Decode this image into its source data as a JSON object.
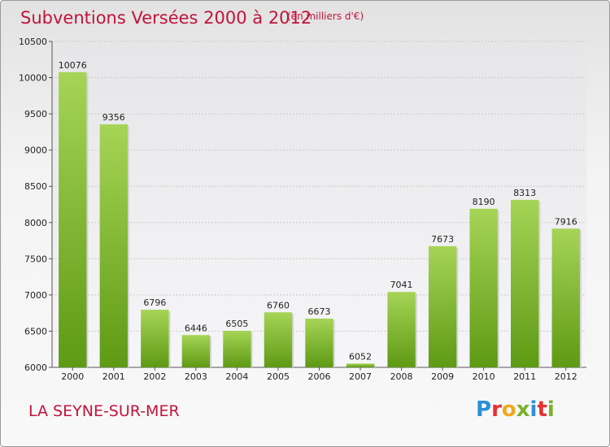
{
  "header": {
    "title": "Subventions Versées 2000 à 2012",
    "unit": "(en milliers d'€)"
  },
  "footer": {
    "city": "LA SEYNE-SUR-MER",
    "brand": [
      "P",
      "r",
      "o",
      "x",
      "i",
      "t",
      "i"
    ]
  },
  "colors": {
    "title": "#c0143c",
    "bar_top": "#a6d456",
    "bar_bottom": "#5e9a14"
  },
  "chart_data": {
    "type": "bar",
    "categories": [
      "2000",
      "2001",
      "2002",
      "2003",
      "2004",
      "2005",
      "2006",
      "2007",
      "2008",
      "2009",
      "2010",
      "2011",
      "2012"
    ],
    "values": [
      10076,
      9356,
      6796,
      6446,
      6505,
      6760,
      6673,
      6052,
      7041,
      7673,
      8190,
      8313,
      7916
    ],
    "ylim": [
      6000,
      10500
    ],
    "yticks": [
      6000,
      6500,
      7000,
      7500,
      8000,
      8500,
      9000,
      9500,
      10000,
      10500
    ],
    "grid": true
  }
}
